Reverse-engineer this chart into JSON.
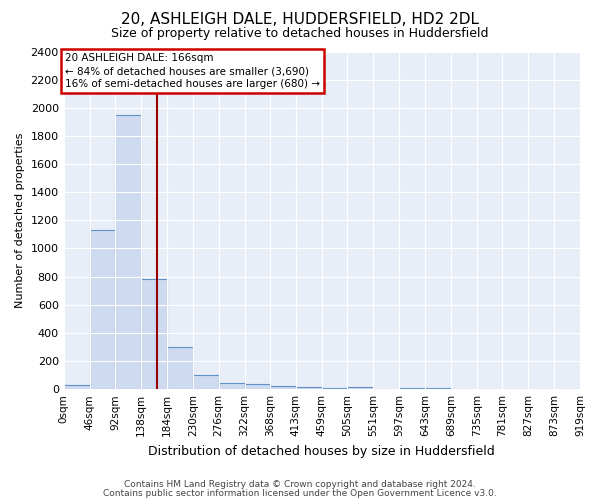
{
  "title1": "20, ASHLEIGH DALE, HUDDERSFIELD, HD2 2DL",
  "title2": "Size of property relative to detached houses in Huddersfield",
  "xlabel": "Distribution of detached houses by size in Huddersfield",
  "ylabel": "Number of detached properties",
  "footer1": "Contains HM Land Registry data © Crown copyright and database right 2024.",
  "footer2": "Contains public sector information licensed under the Open Government Licence v3.0.",
  "bin_labels": [
    "0sqm",
    "46sqm",
    "92sqm",
    "138sqm",
    "184sqm",
    "230sqm",
    "276sqm",
    "322sqm",
    "368sqm",
    "413sqm",
    "459sqm",
    "505sqm",
    "551sqm",
    "597sqm",
    "643sqm",
    "689sqm",
    "735sqm",
    "781sqm",
    "827sqm",
    "873sqm",
    "919sqm"
  ],
  "bar_heights": [
    30,
    1130,
    1950,
    780,
    300,
    100,
    45,
    35,
    20,
    15,
    10,
    15,
    0,
    10,
    10,
    0,
    0,
    0,
    0,
    0
  ],
  "bin_edges": [
    0,
    46,
    92,
    138,
    184,
    230,
    276,
    322,
    368,
    413,
    459,
    505,
    551,
    597,
    643,
    689,
    735,
    781,
    827,
    873,
    919
  ],
  "bar_color": "#cddaf0",
  "bar_edge_color": "#6090c8",
  "property_size": 166,
  "vline_color": "#990000",
  "annotation_text_line1": "20 ASHLEIGH DALE: 166sqm",
  "annotation_text_line2": "← 84% of detached houses are smaller (3,690)",
  "annotation_text_line3": "16% of semi-detached houses are larger (680) →",
  "annotation_box_facecolor": "#ffffff",
  "annotation_box_edgecolor": "#cc0000",
  "ylim": [
    0,
    2400
  ],
  "yticks": [
    0,
    200,
    400,
    600,
    800,
    1000,
    1200,
    1400,
    1600,
    1800,
    2000,
    2200,
    2400
  ],
  "bg_color": "#e8eef8",
  "title1_fontsize": 11,
  "title2_fontsize": 9,
  "xlabel_fontsize": 9,
  "ylabel_fontsize": 8,
  "xtick_fontsize": 7.5,
  "ytick_fontsize": 8,
  "footer_fontsize": 6.5
}
